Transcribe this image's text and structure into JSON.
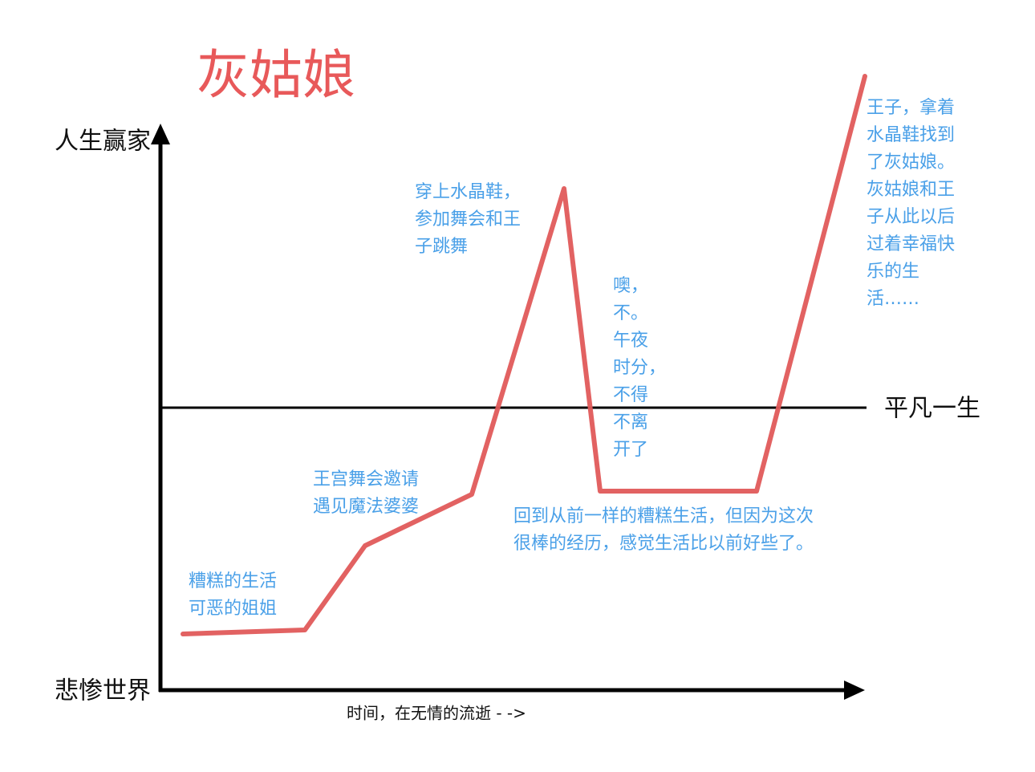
{
  "title": "灰姑娘",
  "axes": {
    "top": "人生赢家",
    "bottom": "悲惨世界",
    "middle": "平凡一生",
    "x": "时间，在无情的流逝 - ->"
  },
  "annotations": [
    {
      "lines": [
        "糟糕的生活",
        "可恶的姐姐"
      ]
    },
    {
      "lines": [
        "王宫舞会邀请",
        "遇见魔法婆婆"
      ]
    },
    {
      "lines": [
        "穿上水晶鞋，",
        "参加舞会和王",
        "子跳舞"
      ]
    },
    {
      "lines": [
        "噢，",
        "不。",
        "午夜",
        "时分，",
        "不得",
        "不离",
        "开了"
      ]
    },
    {
      "lines": [
        "回到从前一样的糟糕生活，但因为这次",
        "很棒的经历，感觉生活比以前好些了。"
      ]
    },
    {
      "lines": [
        "王子，拿着",
        "水晶鞋找到",
        "了灰姑娘。",
        "灰姑娘和王",
        "子从此以后",
        "过着幸福快",
        "乐的生",
        "活……"
      ]
    }
  ]
}
